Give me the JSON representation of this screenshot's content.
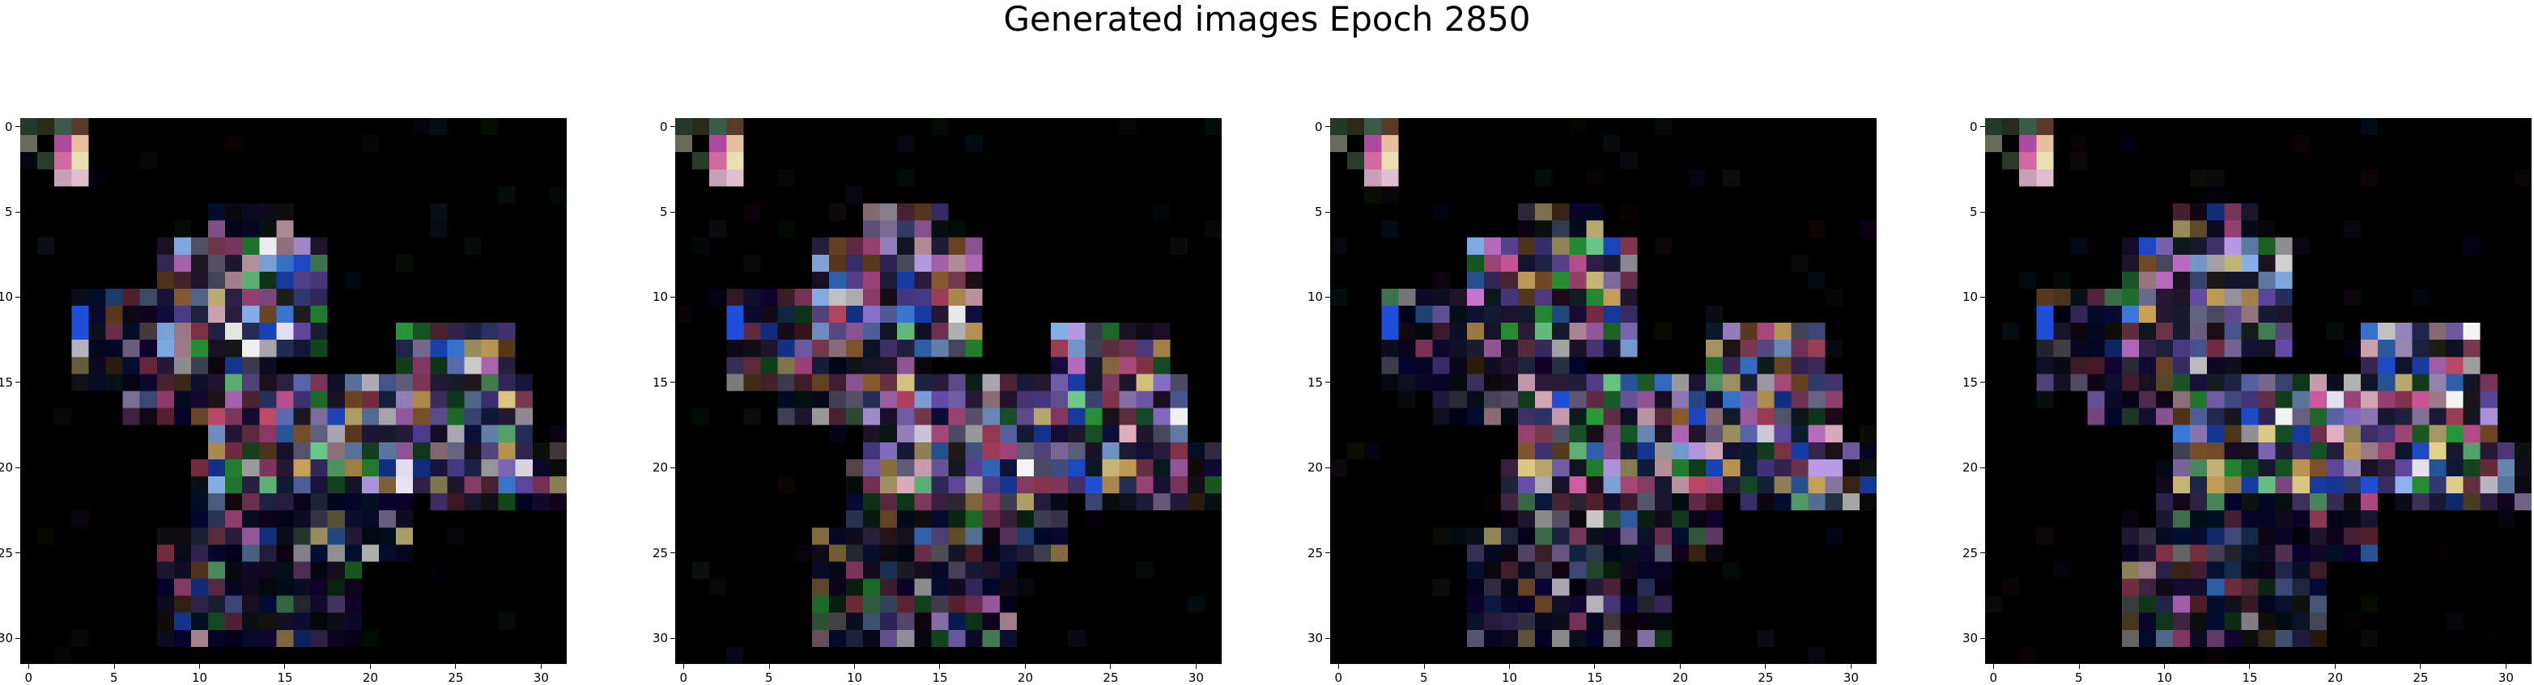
{
  "title": "Generated images Epoch 2850",
  "panels": [
    {
      "x_ticks": [
        "0",
        "5",
        "10",
        "15",
        "20",
        "25",
        "30"
      ],
      "y_ticks": [
        "0",
        "5",
        "10",
        "15",
        "20",
        "25",
        "30"
      ]
    },
    {
      "x_ticks": [
        "0",
        "5",
        "10",
        "15",
        "20",
        "25",
        "30"
      ],
      "y_ticks": [
        "0",
        "5",
        "10",
        "15",
        "20",
        "25",
        "30"
      ]
    },
    {
      "x_ticks": [
        "0",
        "5",
        "10",
        "15",
        "20",
        "25",
        "30"
      ],
      "y_ticks": [
        "0",
        "5",
        "10",
        "15",
        "20",
        "25",
        "30"
      ]
    },
    {
      "x_ticks": [
        "0",
        "5",
        "10",
        "15",
        "20",
        "25",
        "30"
      ],
      "y_ticks": [
        "0",
        "5",
        "10",
        "15",
        "20",
        "25",
        "30"
      ]
    }
  ],
  "image_grid": {
    "rows": 32,
    "cols": 32,
    "background": "#000000"
  },
  "colors": {
    "accent_blue": "#1f4fd8",
    "accent_pink": "#d35aa0",
    "accent_green": "#2a9b3a",
    "accent_pale": "#e8e2f2"
  }
}
